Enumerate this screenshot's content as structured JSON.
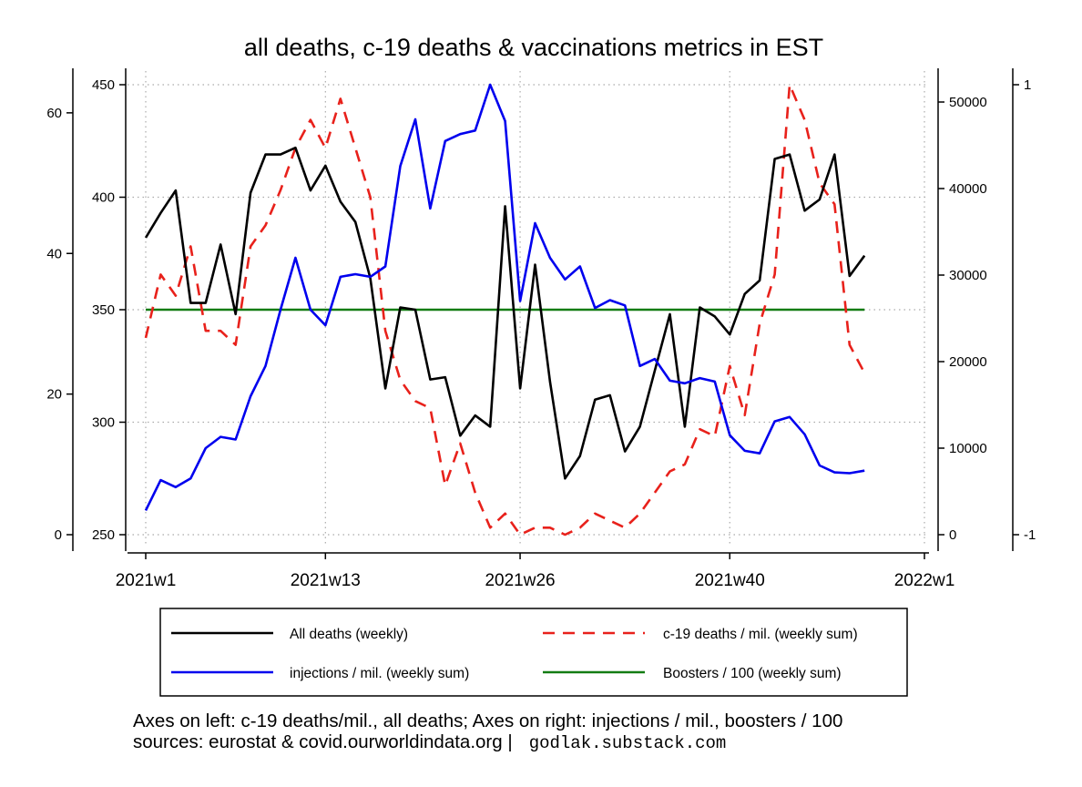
{
  "chart_data": {
    "type": "line",
    "title": "all deaths, c-19 deaths & vaccinations metrics in EST",
    "x_tick_labels": [
      "2021w1",
      "2021w13",
      "2021w26",
      "2021w40",
      "2022w1"
    ],
    "x_tick_weeks": [
      1,
      13,
      26,
      40,
      53
    ],
    "x_range": [
      1,
      53
    ],
    "axes": {
      "c19_deaths_left": {
        "ticks": [
          0,
          20,
          40,
          60
        ],
        "range": [
          0,
          64
        ]
      },
      "all_deaths_left": {
        "ticks": [
          250,
          300,
          350,
          400,
          450
        ],
        "range": [
          250,
          450
        ]
      },
      "injections_right": {
        "ticks": [
          0,
          10000,
          20000,
          30000,
          40000,
          50000
        ],
        "range": [
          0,
          52000
        ]
      },
      "boosters_right": {
        "ticks": [
          -1,
          1
        ],
        "range": [
          -1,
          1
        ]
      }
    },
    "grid": true,
    "series": [
      {
        "name": "All deaths (weekly)",
        "color": "#000000",
        "dash": "solid",
        "axis": "all_deaths_left",
        "x": [
          1,
          2,
          3,
          4,
          5,
          6,
          7,
          8,
          9,
          10,
          11,
          12,
          13,
          14,
          15,
          16,
          17,
          18,
          19,
          20,
          21,
          22,
          23,
          24,
          25,
          26,
          27,
          28,
          29,
          30,
          31,
          32,
          33,
          34,
          35,
          36,
          37,
          38,
          39,
          40,
          41,
          42,
          43,
          44,
          45,
          46,
          47,
          48,
          49
        ],
        "values": [
          382,
          393,
          403,
          353,
          353,
          379,
          348,
          402,
          419,
          419,
          422,
          403,
          414,
          398,
          389,
          364,
          315,
          351,
          350,
          319,
          320,
          294,
          303,
          298,
          396,
          315,
          370,
          318,
          275,
          285,
          310,
          312,
          287,
          298,
          323,
          348,
          298,
          351,
          347,
          339,
          357,
          363,
          417,
          419,
          394,
          399,
          419,
          365,
          374
        ]
      },
      {
        "name": "c-19 deaths / mil. (weekly sum)",
        "color": "#e8211b",
        "dash": "dashed",
        "axis": "c19_deaths_left",
        "x": [
          1,
          2,
          3,
          4,
          5,
          6,
          7,
          8,
          9,
          10,
          11,
          12,
          13,
          14,
          15,
          16,
          17,
          18,
          19,
          20,
          21,
          22,
          23,
          24,
          25,
          26,
          27,
          28,
          29,
          30,
          31,
          32,
          33,
          34,
          35,
          36,
          37,
          38,
          39,
          40,
          41,
          42,
          43,
          44,
          45,
          46,
          47,
          48,
          49
        ],
        "values": [
          28,
          37,
          34,
          41,
          29,
          29,
          27,
          41,
          44,
          49,
          55,
          59,
          55,
          62,
          55,
          48,
          29,
          22,
          19,
          18,
          7,
          13,
          6,
          1,
          3,
          0,
          1,
          1,
          0,
          1,
          3,
          2,
          1,
          3,
          6,
          9,
          10,
          15,
          14,
          24,
          17,
          30,
          37,
          64,
          59,
          50,
          47,
          27,
          23
        ]
      },
      {
        "name": "injections / mil. (weekly sum)",
        "color": "#0000ee",
        "dash": "solid",
        "axis": "injections_right",
        "x": [
          1,
          2,
          3,
          4,
          5,
          6,
          7,
          8,
          9,
          10,
          11,
          12,
          13,
          14,
          15,
          16,
          17,
          18,
          19,
          20,
          21,
          22,
          23,
          24,
          25,
          26,
          27,
          28,
          29,
          30,
          31,
          32,
          33,
          34,
          35,
          36,
          37,
          38,
          39,
          40,
          41,
          42,
          43,
          44,
          45,
          46,
          47,
          48,
          49
        ],
        "values": [
          2800,
          6300,
          5500,
          6500,
          10000,
          11300,
          11000,
          16000,
          19500,
          26000,
          32000,
          26000,
          24200,
          29800,
          30100,
          29800,
          31000,
          42600,
          48000,
          37700,
          45500,
          46300,
          46700,
          52000,
          47800,
          27000,
          36000,
          32000,
          29500,
          31000,
          26200,
          27100,
          26500,
          19500,
          20300,
          17800,
          17500,
          18100,
          17700,
          11500,
          9700,
          9400,
          13100,
          13600,
          11600,
          8000,
          7200,
          7100,
          7400
        ]
      },
      {
        "name": "Boosters / 100 (weekly sum)",
        "color": "#137c13",
        "dash": "solid",
        "axis": "boosters_right",
        "x": [
          1,
          49
        ],
        "values": [
          0,
          0
        ]
      }
    ],
    "legend": {
      "placement": "bottom",
      "columns": 2
    },
    "notes": [
      "Axes on left: c-19 deaths/mil., all deaths; Axes on right: injections / mil., boosters / 100",
      "sources: eurostat & covid.ourworldindata.org |",
      "godlak.substack.com"
    ]
  }
}
